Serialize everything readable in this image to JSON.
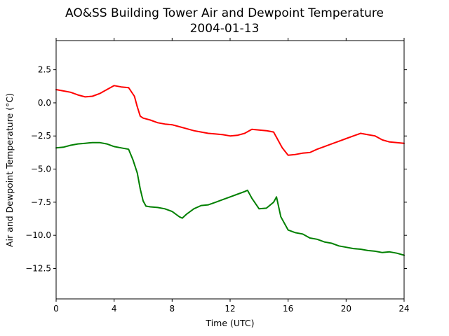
{
  "chart_data": {
    "type": "line",
    "title": "AO&SS Building Tower Air and Dewpoint Temperature",
    "subtitle": "2004-01-13",
    "xlabel": "Time (UTC)",
    "ylabel": "Air and Dewpoint Temperature (°C)",
    "xlim": [
      0,
      24
    ],
    "ylim": [
      -14.8,
      4.7
    ],
    "xticks": [
      0,
      4,
      8,
      12,
      16,
      20,
      24
    ],
    "yticks": [
      -12.5,
      -10.0,
      -7.5,
      -5.0,
      -2.5,
      0.0,
      2.5
    ],
    "ytick_labels": [
      "−12.5",
      "−10.0",
      "−7.5",
      "−5.0",
      "−2.5",
      "0.0",
      "2.5"
    ],
    "grid": false,
    "series": [
      {
        "color": "#ff0000",
        "x": [
          0,
          0.5,
          1,
          1.5,
          2,
          2.5,
          3,
          3.5,
          4,
          4.5,
          5,
          5.4,
          5.6,
          5.8,
          6,
          6.5,
          7,
          7.5,
          8,
          8.5,
          9,
          9.5,
          10,
          10.5,
          11,
          11.5,
          12,
          12.5,
          13,
          13.5,
          14,
          14.5,
          15,
          15.2,
          15.6,
          16,
          16.5,
          17,
          17.5,
          18,
          18.5,
          19,
          19.5,
          20,
          20.5,
          21,
          21.5,
          22,
          22.5,
          23,
          23.5,
          24
        ],
        "y": [
          1.0,
          0.9,
          0.8,
          0.6,
          0.45,
          0.5,
          0.7,
          1.0,
          1.3,
          1.2,
          1.15,
          0.5,
          -0.3,
          -1.0,
          -1.15,
          -1.3,
          -1.5,
          -1.6,
          -1.65,
          -1.8,
          -1.95,
          -2.1,
          -2.2,
          -2.3,
          -2.35,
          -2.4,
          -2.5,
          -2.45,
          -2.3,
          -2.0,
          -2.05,
          -2.1,
          -2.2,
          -2.6,
          -3.4,
          -3.95,
          -3.9,
          -3.8,
          -3.75,
          -3.5,
          -3.3,
          -3.1,
          -2.9,
          -2.7,
          -2.5,
          -2.3,
          -2.4,
          -2.5,
          -2.8,
          -2.95,
          -3.0,
          -3.05
        ]
      },
      {
        "color": "#008000",
        "x": [
          0,
          0.5,
          1,
          1.5,
          2,
          2.5,
          3,
          3.5,
          4,
          4.5,
          5,
          5.3,
          5.6,
          5.8,
          6,
          6.2,
          6.5,
          7,
          7.5,
          8,
          8.5,
          8.7,
          9,
          9.5,
          10,
          10.5,
          11,
          11.5,
          12,
          12.5,
          13,
          13.2,
          13.5,
          14,
          14.5,
          15,
          15.2,
          15.5,
          16,
          16.5,
          17,
          17.5,
          18,
          18.5,
          19,
          19.5,
          20,
          20.5,
          21,
          21.5,
          22,
          22.5,
          23,
          23.5,
          24
        ],
        "y": [
          -3.4,
          -3.35,
          -3.2,
          -3.1,
          -3.05,
          -3.0,
          -3.0,
          -3.1,
          -3.3,
          -3.4,
          -3.5,
          -4.3,
          -5.3,
          -6.5,
          -7.4,
          -7.8,
          -7.85,
          -7.9,
          -8.0,
          -8.2,
          -8.6,
          -8.7,
          -8.4,
          -8.0,
          -7.75,
          -7.7,
          -7.5,
          -7.3,
          -7.1,
          -6.9,
          -6.7,
          -6.6,
          -7.2,
          -8.0,
          -7.95,
          -7.5,
          -7.1,
          -8.6,
          -9.6,
          -9.8,
          -9.9,
          -10.2,
          -10.3,
          -10.5,
          -10.6,
          -10.8,
          -10.9,
          -11.0,
          -11.05,
          -11.15,
          -11.2,
          -11.3,
          -11.25,
          -11.35,
          -11.5
        ]
      }
    ]
  }
}
